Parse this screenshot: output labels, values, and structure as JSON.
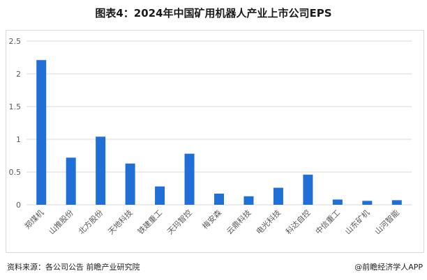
{
  "header": {
    "title": "图表4：2024年中国矿用机器人产业上市公司EPS"
  },
  "footer": {
    "source": "资料来源：各公司公告 前瞻产业研究院",
    "brand": "@前瞻经济学人APP"
  },
  "colors": {
    "bar": "#1f6fd6",
    "grid": "#d9d9d9",
    "axis_text": "#595959"
  },
  "chart_data": {
    "type": "bar",
    "title": "图表4：2024年中国矿用机器人产业上市公司EPS",
    "xlabel": "",
    "ylabel": "",
    "categories": [
      "郑煤机",
      "山推股份",
      "北方股份",
      "天地科技",
      "铁建重工",
      "天玛智控",
      "梅安森",
      "云鼎科技",
      "电光科技",
      "科达自控",
      "中信重工",
      "山东矿机",
      "山河智能"
    ],
    "values": [
      2.21,
      0.72,
      1.04,
      0.63,
      0.28,
      0.78,
      0.17,
      0.13,
      0.26,
      0.46,
      0.08,
      0.06,
      0.07
    ],
    "ylim": [
      0,
      2.5
    ],
    "yticks": [
      0,
      0.5,
      1,
      1.5,
      2,
      2.5
    ],
    "ytick_labels": [
      "0",
      "0.5",
      "1",
      "1.5",
      "2",
      "2.5"
    ],
    "grid": true,
    "legend": "none"
  }
}
